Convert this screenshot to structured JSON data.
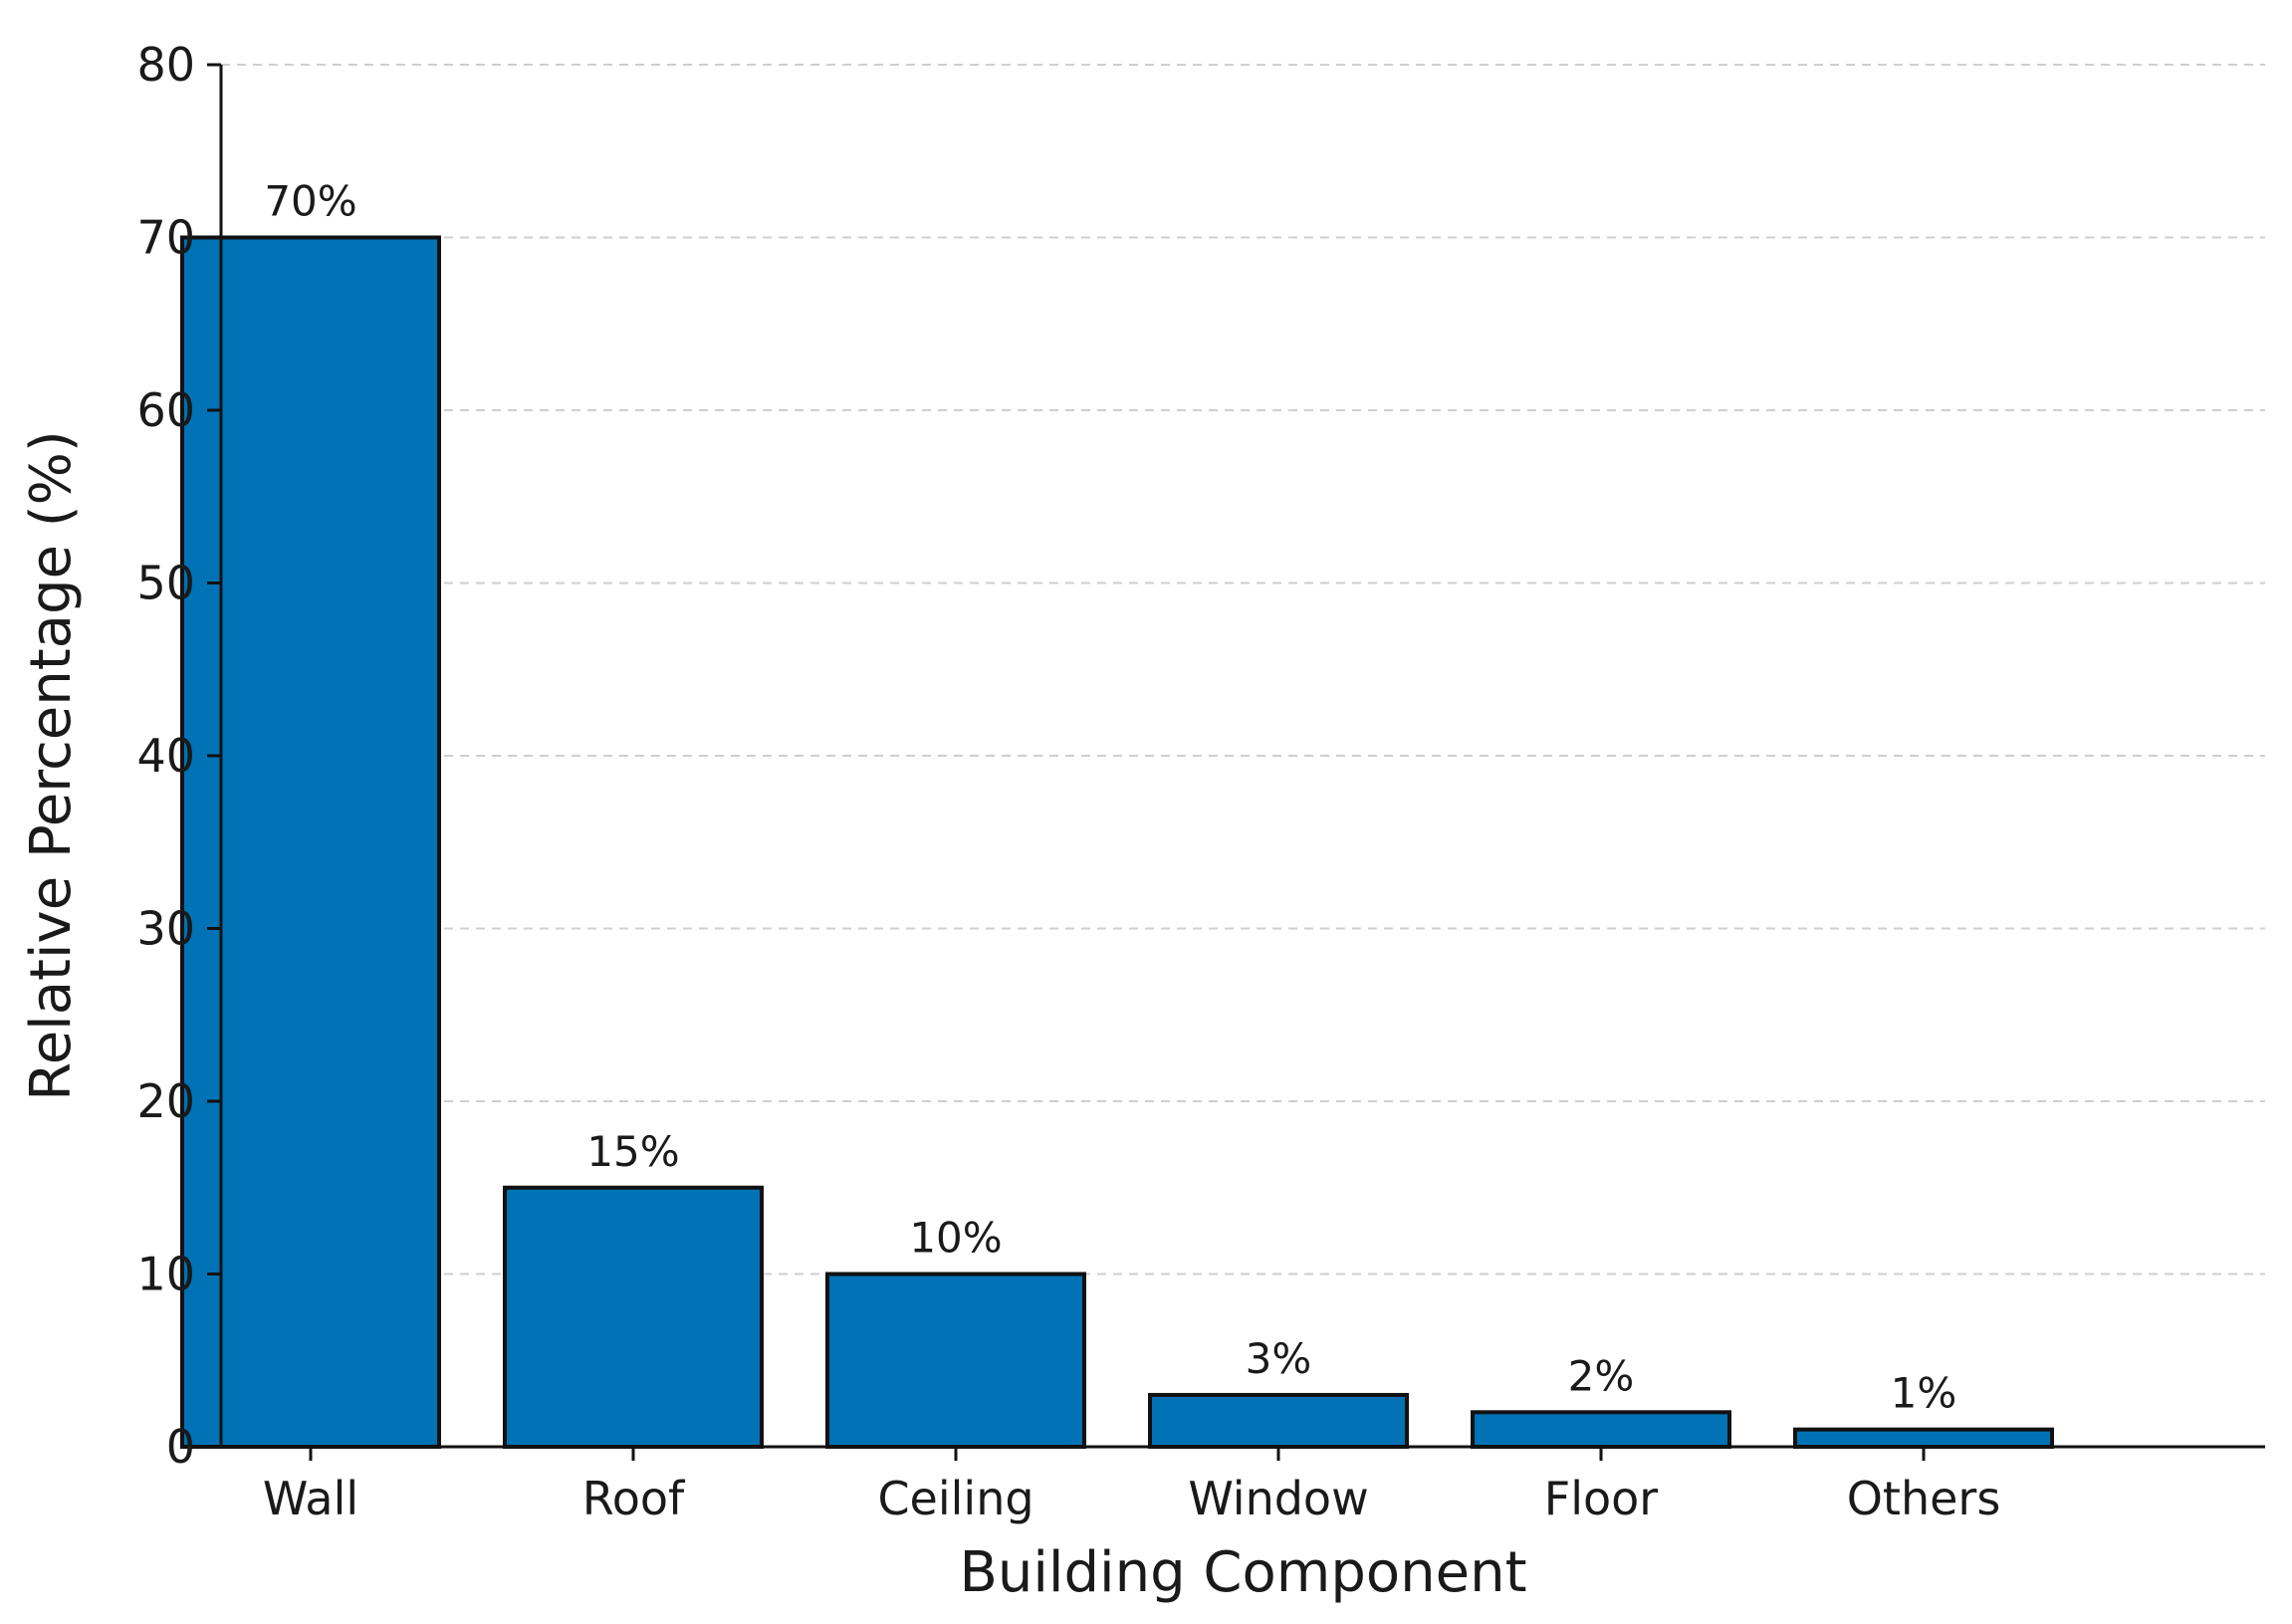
{
  "chart_data": {
    "type": "bar",
    "title": "",
    "xlabel": "Building Component",
    "ylabel": "Relative Percentage (%)",
    "categories": [
      "Wall",
      "Roof",
      "Ceiling",
      "Window",
      "Floor",
      "Others"
    ],
    "values": [
      70,
      15,
      10,
      3,
      2,
      1
    ],
    "data_labels": [
      "70%",
      "15%",
      "10%",
      "3%",
      "2%",
      "1%"
    ],
    "ylim": [
      0,
      80
    ],
    "yticks": [
      0,
      10,
      20,
      30,
      40,
      50,
      60,
      70,
      80
    ],
    "grid": "horizontal dashed",
    "legend": "none",
    "colors": {
      "bar": "#0072b5",
      "bar_edge": "#111111",
      "grid": "#cfcfcf",
      "axis": "#111111"
    }
  }
}
